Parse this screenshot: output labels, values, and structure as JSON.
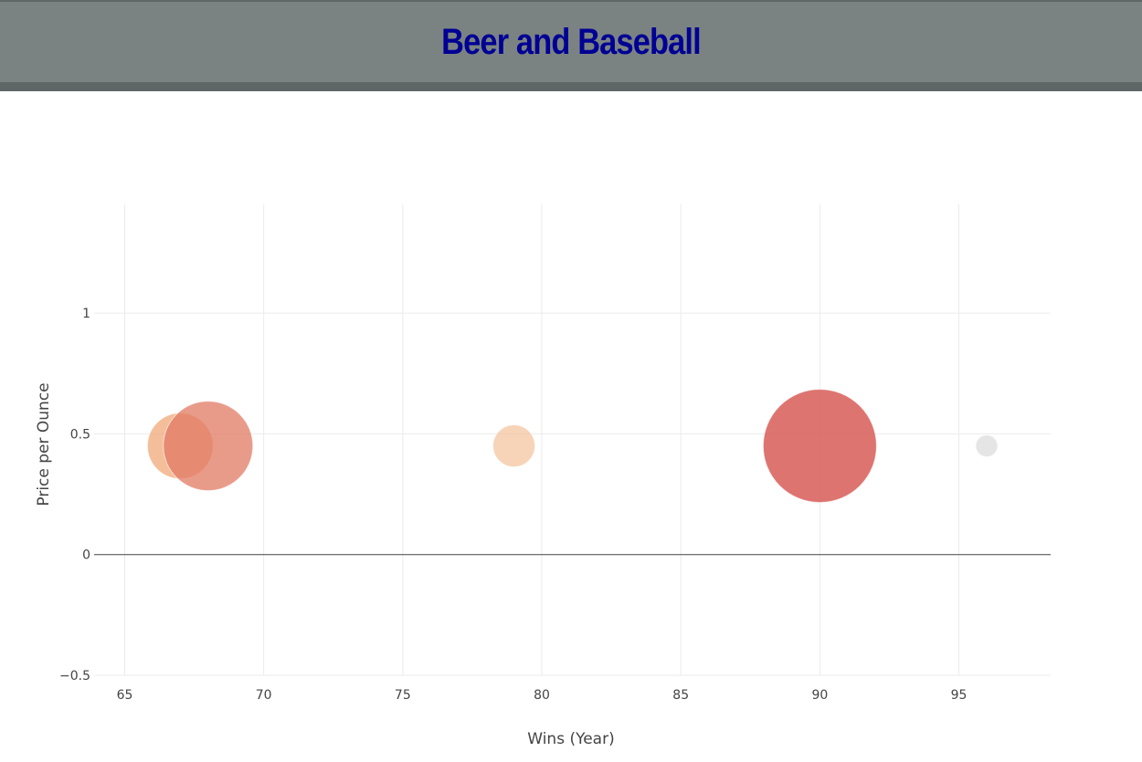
{
  "header": {
    "title": "Beer and Baseball",
    "background": "#7a8381",
    "title_color": "#000094"
  },
  "chart_data": {
    "type": "scatter",
    "title": "",
    "xlabel": "Wins (Year)",
    "ylabel": "Price per Ounce",
    "xlim": [
      63.9,
      98.3
    ],
    "ylim": [
      -0.5,
      1.45
    ],
    "xticks": [
      65,
      70,
      75,
      80,
      85,
      90,
      95
    ],
    "xtick_labels": [
      "65",
      "70",
      "75",
      "80",
      "85",
      "90",
      "95"
    ],
    "yticks": [
      -0.5,
      0,
      0.5,
      1
    ],
    "ytick_labels": [
      "−0.5",
      "0",
      "0.5",
      "1"
    ],
    "grid": true,
    "legend": "none",
    "points": [
      {
        "x": 67,
        "y": 0.45,
        "size": 36,
        "color": "#f0a36f",
        "opacity": 0.7
      },
      {
        "x": 68,
        "y": 0.45,
        "size": 49,
        "color": "#e27a63",
        "opacity": 0.75
      },
      {
        "x": 79,
        "y": 0.45,
        "size": 23,
        "color": "#f4c09a",
        "opacity": 0.7
      },
      {
        "x": 90,
        "y": 0.45,
        "size": 62,
        "color": "#d65650",
        "opacity": 0.82
      },
      {
        "x": 96,
        "y": 0.45,
        "size": 12,
        "color": "#e2e2e2",
        "opacity": 0.9
      }
    ]
  }
}
